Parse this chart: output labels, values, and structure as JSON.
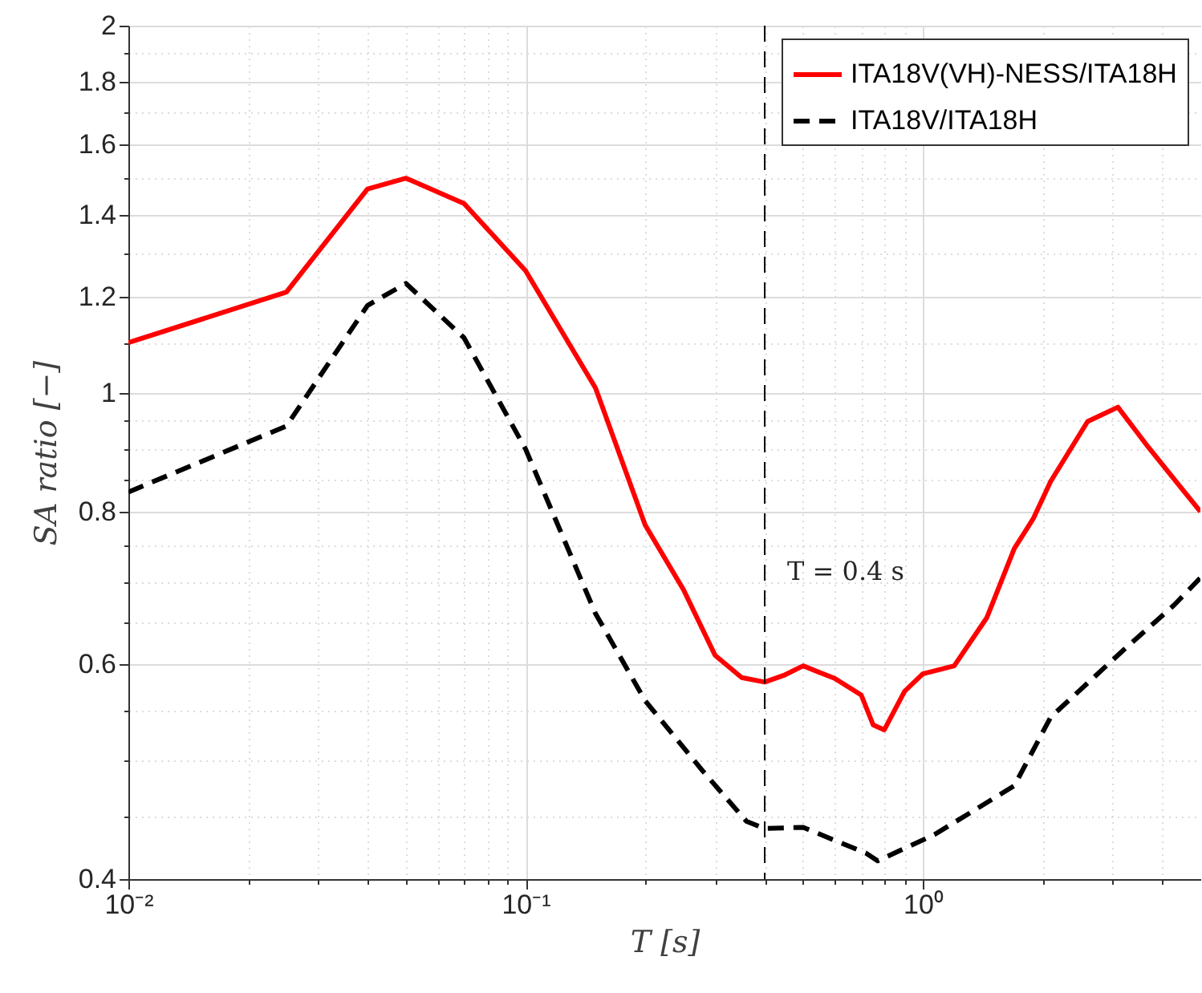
{
  "chart_data": {
    "type": "line",
    "xlabel": "T [s]",
    "ylabel": "SA ratio [−]",
    "log": "xy",
    "grid": true,
    "legend": "top right",
    "marker": "none",
    "xlim": [
      0.01,
      5
    ],
    "ylim": [
      0.4,
      2
    ],
    "xticks": [
      {
        "value": 0.01,
        "label": "10⁻²"
      },
      {
        "value": 0.02,
        "label": null
      },
      {
        "value": 0.03,
        "label": null
      },
      {
        "value": 0.04,
        "label": null
      },
      {
        "value": 0.05,
        "label": null
      },
      {
        "value": 0.06,
        "label": null
      },
      {
        "value": 0.07,
        "label": null
      },
      {
        "value": 0.08,
        "label": null
      },
      {
        "value": 0.09,
        "label": null
      },
      {
        "value": 0.1,
        "label": "10⁻¹"
      },
      {
        "value": 0.2,
        "label": null
      },
      {
        "value": 0.3,
        "label": null
      },
      {
        "value": 0.4,
        "label": null
      },
      {
        "value": 0.5,
        "label": null
      },
      {
        "value": 0.6,
        "label": null
      },
      {
        "value": 0.7,
        "label": null
      },
      {
        "value": 0.8,
        "label": null
      },
      {
        "value": 0.9,
        "label": null
      },
      {
        "value": 1,
        "label": "10⁰"
      },
      {
        "value": 2,
        "label": null
      },
      {
        "value": 3,
        "label": null
      },
      {
        "value": 4,
        "label": null
      }
    ],
    "yticks": [
      0.4,
      {
        "value": 0.45,
        "label": null
      },
      {
        "value": 0.5,
        "label": null
      },
      {
        "value": 0.55,
        "label": null
      },
      0.6,
      {
        "value": 0.65,
        "label": null
      },
      {
        "value": 0.7,
        "label": null
      },
      {
        "value": 0.75,
        "label": null
      },
      0.8,
      {
        "value": 0.85,
        "label": null
      },
      {
        "value": 0.9,
        "label": null
      },
      {
        "value": 0.95,
        "label": null
      },
      1,
      {
        "value": 1.1,
        "label": null
      },
      1.2,
      {
        "value": 1.3,
        "label": null
      },
      1.4,
      {
        "value": 1.5,
        "label": null
      },
      1.6,
      {
        "value": 1.7,
        "label": null
      },
      1.8,
      {
        "value": 1.9,
        "label": null
      },
      2
    ],
    "series": [
      {
        "name": "ITA18V(VH)-NESS/ITA18H",
        "color": "#ff0000",
        "line_style": "solid",
        "x": [
          0.01,
          0.025,
          0.04,
          0.05,
          0.07,
          0.1,
          0.15,
          0.2,
          0.25,
          0.3,
          0.35,
          0.4,
          0.45,
          0.5,
          0.6,
          0.7,
          0.75,
          0.8,
          0.9,
          1,
          1.2,
          1.45,
          1.7,
          1.9,
          2.1,
          2.6,
          3.1,
          3.7,
          4.4,
          5
        ],
        "values": [
          1.1,
          1.21,
          1.47,
          1.5,
          1.43,
          1.26,
          1.01,
          0.78,
          0.69,
          0.61,
          0.585,
          0.58,
          0.588,
          0.598,
          0.584,
          0.566,
          0.535,
          0.53,
          0.57,
          0.589,
          0.598,
          0.655,
          0.746,
          0.79,
          0.847,
          0.948,
          0.974,
          0.903,
          0.842,
          0.8
        ]
      },
      {
        "name": "ITA18V/ITA18H",
        "color": "#000000",
        "line_style": "dashed",
        "x": [
          0.01,
          0.025,
          0.04,
          0.05,
          0.07,
          0.1,
          0.15,
          0.2,
          0.28,
          0.36,
          0.4,
          0.5,
          0.72,
          0.77,
          1.07,
          1.7,
          2.1,
          3.2,
          4.3,
          5
        ],
        "values": [
          0.83,
          0.94,
          1.18,
          1.23,
          1.11,
          0.9,
          0.66,
          0.56,
          0.49,
          0.446,
          0.44,
          0.441,
          0.42,
          0.414,
          0.435,
          0.477,
          0.543,
          0.616,
          0.671,
          0.706
        ]
      }
    ],
    "ref_lines": [
      {
        "axis": "x",
        "value": 0.4,
        "label": "T = 0.4 s",
        "color": "#000000",
        "line_style": "dashed"
      }
    ]
  }
}
